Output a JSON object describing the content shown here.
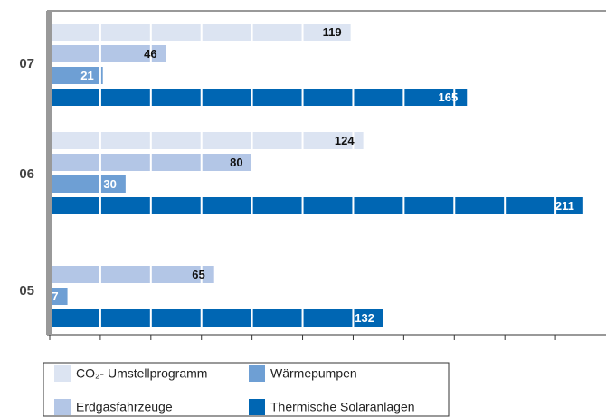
{
  "chart_data": {
    "type": "bar",
    "orientation": "horizontal",
    "categories": [
      "07",
      "06",
      "05"
    ],
    "series": [
      {
        "name": "CO₂- Umstellprogramm",
        "color": "#dce4f2",
        "values": [
          119,
          124,
          null
        ]
      },
      {
        "name": "Erdgasfahrzeuge",
        "color": "#b3c6e6",
        "values": [
          46,
          80,
          65
        ]
      },
      {
        "name": "Wärmepumpen",
        "color": "#6e9fd4",
        "values": [
          21,
          30,
          7
        ]
      },
      {
        "name": "Thermische Solaranlagen",
        "color": "#0066b3",
        "values": [
          165,
          211,
          132
        ]
      }
    ],
    "xlim": [
      0,
      220
    ],
    "xticks": [
      0,
      20,
      40,
      60,
      80,
      100,
      120,
      140,
      160,
      180,
      200
    ],
    "grid": true
  }
}
